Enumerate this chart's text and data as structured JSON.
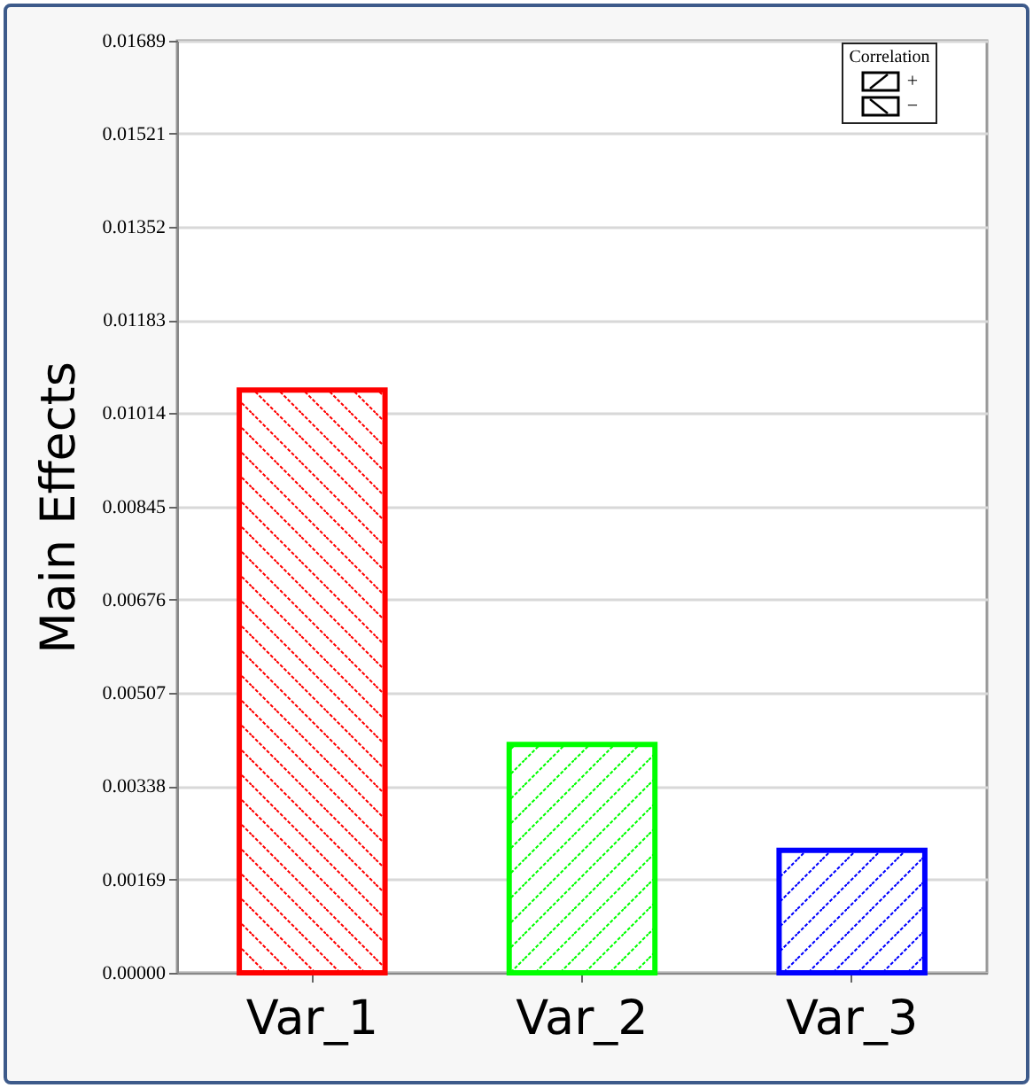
{
  "chart_data": {
    "type": "bar",
    "ylabel": "Main Effects",
    "categories": [
      "Var_1",
      "Var_2",
      "Var_3"
    ],
    "values": [
      0.01056,
      0.00414,
      0.00222
    ],
    "colors": [
      "#ff0000",
      "#00ff00",
      "#0000ff"
    ],
    "annotations": [
      "Correlation",
      "+",
      "−"
    ],
    "ylim": [
      0,
      0.01689
    ],
    "yticks": [
      {
        "value": 0,
        "label": "0.00000"
      },
      0.00169,
      0.00338,
      0.00507,
      0.00676,
      0.00845,
      0.01014,
      0.01183,
      0.01352,
      0.01521,
      0.01689
    ],
    "grid": true
  }
}
